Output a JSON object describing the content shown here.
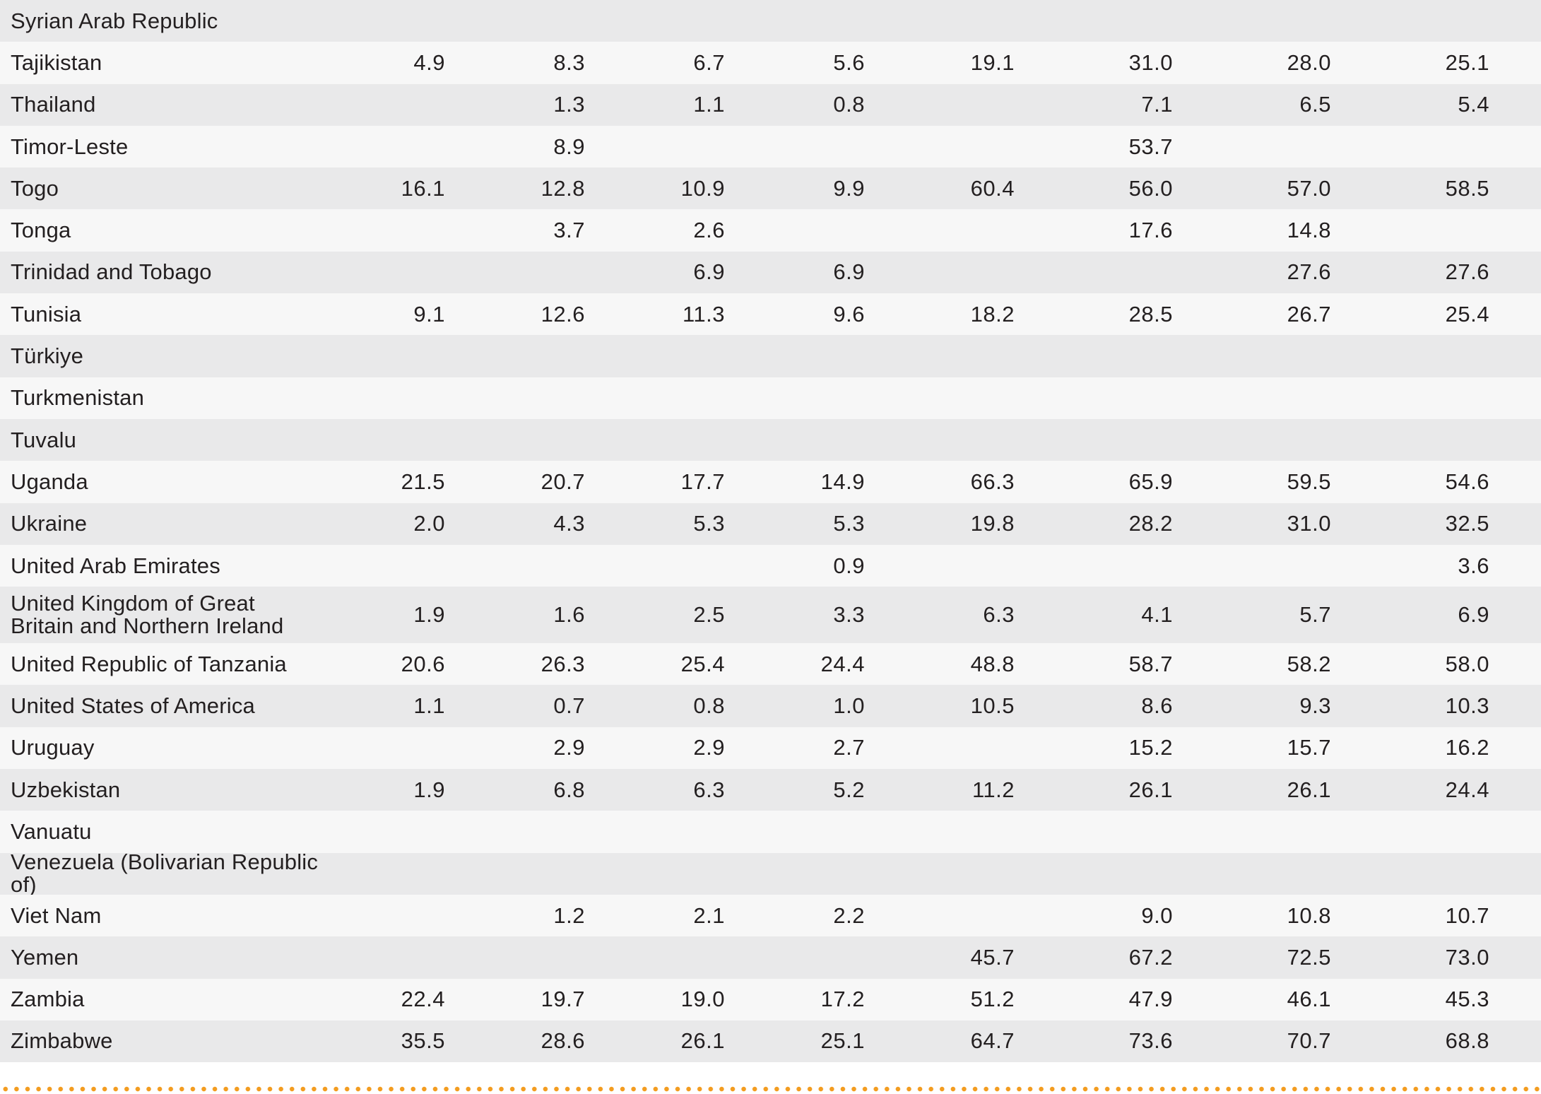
{
  "table": {
    "rows": [
      {
        "country": "Syrian Arab Republic",
        "values": [
          "",
          "",
          "",
          "",
          "",
          "",
          "",
          ""
        ]
      },
      {
        "country": "Tajikistan",
        "values": [
          "4.9",
          "8.3",
          "6.7",
          "5.6",
          "19.1",
          "31.0",
          "28.0",
          "25.1"
        ]
      },
      {
        "country": "Thailand",
        "values": [
          "",
          "1.3",
          "1.1",
          "0.8",
          "",
          "7.1",
          "6.5",
          "5.4"
        ]
      },
      {
        "country": "Timor-Leste",
        "values": [
          "",
          "8.9",
          "",
          "",
          "",
          "53.7",
          "",
          ""
        ]
      },
      {
        "country": "Togo",
        "values": [
          "16.1",
          "12.8",
          "10.9",
          "9.9",
          "60.4",
          "56.0",
          "57.0",
          "58.5"
        ]
      },
      {
        "country": "Tonga",
        "values": [
          "",
          "3.7",
          "2.6",
          "",
          "",
          "17.6",
          "14.8",
          ""
        ]
      },
      {
        "country": "Trinidad and Tobago",
        "values": [
          "",
          "",
          "6.9",
          "6.9",
          "",
          "",
          "27.6",
          "27.6"
        ]
      },
      {
        "country": "Tunisia",
        "values": [
          "9.1",
          "12.6",
          "11.3",
          "9.6",
          "18.2",
          "28.5",
          "26.7",
          "25.4"
        ]
      },
      {
        "country": "Türkiye",
        "values": [
          "",
          "",
          "",
          "",
          "",
          "",
          "",
          ""
        ]
      },
      {
        "country": "Turkmenistan",
        "values": [
          "",
          "",
          "",
          "",
          "",
          "",
          "",
          ""
        ]
      },
      {
        "country": "Tuvalu",
        "values": [
          "",
          "",
          "",
          "",
          "",
          "",
          "",
          ""
        ]
      },
      {
        "country": "Uganda",
        "values": [
          "21.5",
          "20.7",
          "17.7",
          "14.9",
          "66.3",
          "65.9",
          "59.5",
          "54.6"
        ]
      },
      {
        "country": "Ukraine",
        "values": [
          "2.0",
          "4.3",
          "5.3",
          "5.3",
          "19.8",
          "28.2",
          "31.0",
          "32.5"
        ]
      },
      {
        "country": "United Arab Emirates",
        "values": [
          "",
          "",
          "",
          "0.9",
          "",
          "",
          "",
          "3.6"
        ]
      },
      {
        "country": "United Kingdom of Great Britain and Northern Ireland",
        "values": [
          "1.9",
          "1.6",
          "2.5",
          "3.3",
          "6.3",
          "4.1",
          "5.7",
          "6.9"
        ]
      },
      {
        "country": "United Republic of Tanzania",
        "values": [
          "20.6",
          "26.3",
          "25.4",
          "24.4",
          "48.8",
          "58.7",
          "58.2",
          "58.0"
        ]
      },
      {
        "country": "United States of America",
        "values": [
          "1.1",
          "0.7",
          "0.8",
          "1.0",
          "10.5",
          "8.6",
          "9.3",
          "10.3"
        ]
      },
      {
        "country": "Uruguay",
        "values": [
          "",
          "2.9",
          "2.9",
          "2.7",
          "",
          "15.2",
          "15.7",
          "16.2"
        ]
      },
      {
        "country": "Uzbekistan",
        "values": [
          "1.9",
          "6.8",
          "6.3",
          "5.2",
          "11.2",
          "26.1",
          "26.1",
          "24.4"
        ]
      },
      {
        "country": "Vanuatu",
        "values": [
          "",
          "",
          "",
          "",
          "",
          "",
          "",
          ""
        ]
      },
      {
        "country": "Venezuela (Bolivarian Republic of)",
        "values": [
          "",
          "",
          "",
          "",
          "",
          "",
          "",
          ""
        ]
      },
      {
        "country": "Viet Nam",
        "values": [
          "",
          "1.2",
          "2.1",
          "2.2",
          "",
          "9.0",
          "10.8",
          "10.7"
        ]
      },
      {
        "country": "Yemen",
        "values": [
          "",
          "",
          "",
          "",
          "45.7",
          "67.2",
          "72.5",
          "73.0"
        ]
      },
      {
        "country": "Zambia",
        "values": [
          "22.4",
          "19.7",
          "19.0",
          "17.2",
          "51.2",
          "47.9",
          "46.1",
          "45.3"
        ]
      },
      {
        "country": "Zimbabwe",
        "values": [
          "35.5",
          "28.6",
          "26.1",
          "25.1",
          "64.7",
          "73.6",
          "70.7",
          "68.8"
        ]
      }
    ]
  },
  "colors": {
    "row_shade": "#e9e9ea",
    "row_light": "#f7f7f7",
    "dotted_rule": "#f39c1f",
    "text": "#231f20"
  }
}
